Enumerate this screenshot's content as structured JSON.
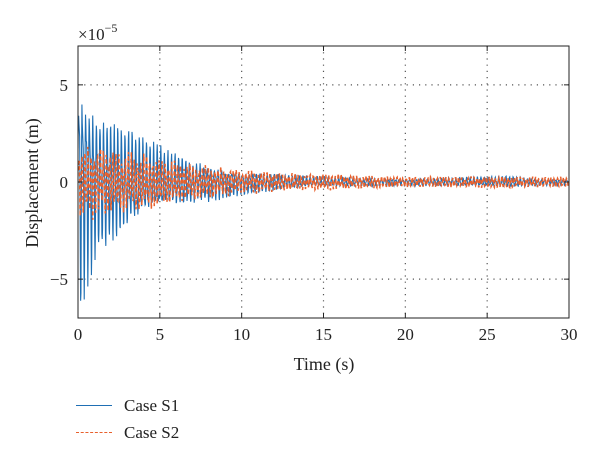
{
  "chart_data": {
    "type": "line",
    "xlabel": "Time (s)",
    "ylabel": "Displacement (m)",
    "y_multiplier": "×10",
    "y_exponent": "−5",
    "xlim": [
      0,
      30
    ],
    "ylim": [
      -7,
      7
    ],
    "xticks": [
      0,
      5,
      10,
      15,
      20,
      25,
      30
    ],
    "xtick_labels": [
      "0",
      "5",
      "10",
      "15",
      "20",
      "25",
      "30"
    ],
    "yticks": [
      -5,
      0,
      5
    ],
    "ytick_labels": [
      "−5",
      "0",
      "5"
    ],
    "grid": true,
    "legend_position": "below",
    "series": [
      {
        "name": "Case S1",
        "color": "#1f6fb4",
        "style": "solid",
        "envelope": [
          [
            0,
            7.0
          ],
          [
            0.3,
            6.8
          ],
          [
            1.0,
            4.6
          ],
          [
            2.0,
            3.8
          ],
          [
            3.0,
            3.2
          ],
          [
            4.0,
            2.5
          ],
          [
            5.0,
            2.0
          ],
          [
            6.0,
            1.6
          ],
          [
            7.0,
            1.3
          ],
          [
            8.0,
            1.1
          ],
          [
            9.0,
            0.9
          ],
          [
            10.0,
            0.75
          ],
          [
            12.0,
            0.5
          ],
          [
            14.0,
            0.35
          ],
          [
            16.0,
            0.3
          ],
          [
            20.0,
            0.2
          ],
          [
            25.0,
            0.3
          ],
          [
            26.5,
            0.35
          ],
          [
            28.0,
            0.2
          ],
          [
            30.0,
            0.2
          ]
        ]
      },
      {
        "name": "Case S2",
        "color": "#e8602c",
        "style": "dashed",
        "envelope": [
          [
            0,
            2.2
          ],
          [
            1.0,
            2.0
          ],
          [
            2.0,
            1.9
          ],
          [
            3.0,
            1.7
          ],
          [
            4.0,
            1.6
          ],
          [
            5.0,
            1.5
          ],
          [
            6.0,
            1.2
          ],
          [
            8.0,
            0.9
          ],
          [
            10.0,
            0.7
          ],
          [
            12.0,
            0.55
          ],
          [
            14.0,
            0.45
          ],
          [
            15.0,
            0.5
          ],
          [
            16.0,
            0.45
          ],
          [
            18.0,
            0.35
          ],
          [
            20.0,
            0.3
          ],
          [
            24.0,
            0.3
          ],
          [
            26.0,
            0.35
          ],
          [
            28.0,
            0.3
          ],
          [
            30.0,
            0.3
          ]
        ]
      }
    ]
  }
}
